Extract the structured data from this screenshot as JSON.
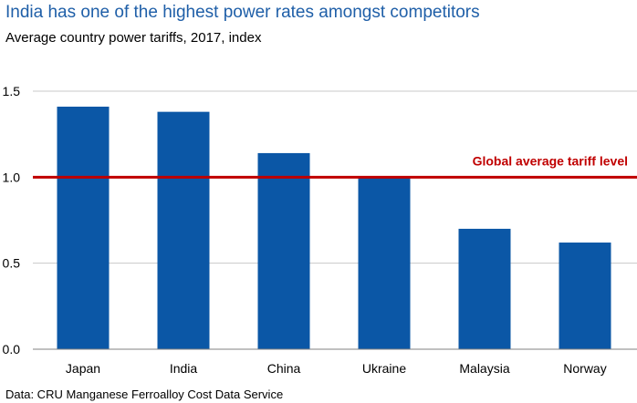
{
  "header": {
    "title": "India has one of the highest power rates amongst competitors",
    "subtitle": "Average country power tariffs, 2017, index"
  },
  "footer": {
    "source": "Data: CRU Manganese Ferroalloy Cost Data Service"
  },
  "colors": {
    "bar": "#0b57a6",
    "reference_line": "#c00000",
    "title": "#1f5fa8",
    "grid": "#c8c8c8"
  },
  "chart_data": {
    "type": "bar",
    "title": "India has one of the highest power rates amongst competitors",
    "subtitle": "Average country power tariffs, 2017, index",
    "categories": [
      "Japan",
      "India",
      "China",
      "Ukraine",
      "Malaysia",
      "Norway"
    ],
    "values": [
      1.41,
      1.38,
      1.14,
      1.0,
      0.7,
      0.62
    ],
    "ylim": [
      0,
      1.5
    ],
    "yticks": [
      0.0,
      0.5,
      1.0,
      1.5
    ],
    "ytick_labels": [
      "0.0",
      "0.5",
      "1.0",
      "1.5"
    ],
    "grid": true,
    "reference_line": {
      "value": 1.0,
      "label": "Global average tariff level"
    },
    "legend": "none"
  }
}
